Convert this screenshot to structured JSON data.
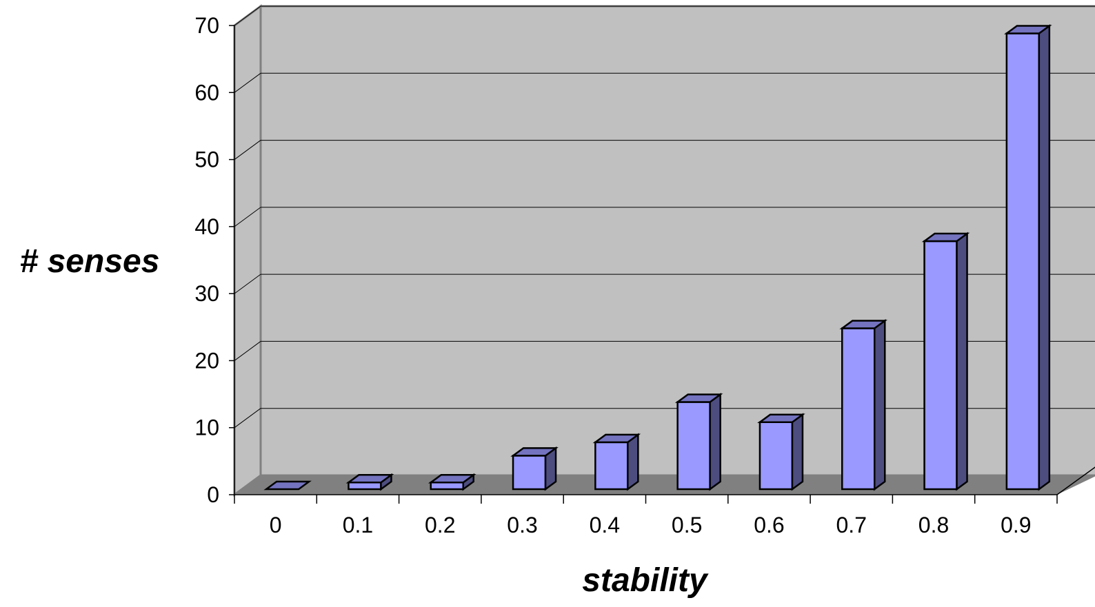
{
  "chart_data": {
    "type": "bar",
    "title": "",
    "xlabel": "stability",
    "ylabel": "# senses",
    "categories": [
      "0",
      "0.1",
      "0.2",
      "0.3",
      "0.4",
      "0.5",
      "0.6",
      "0.7",
      "0.8",
      "0.9"
    ],
    "values": [
      0,
      1,
      1,
      5,
      7,
      13,
      10,
      24,
      37,
      68
    ],
    "ylim": [
      0,
      70
    ],
    "yticks": [
      "0",
      "10",
      "20",
      "30",
      "40",
      "50",
      "60",
      "70"
    ],
    "grid": true,
    "style": "3d",
    "colors": {
      "bar_front": "#9999ff",
      "bar_side": "#4d4d80",
      "bar_top": "#7373bf",
      "back_wall": "#c0c0c0",
      "side_wall": "#c0c0c0",
      "floor": "#808080",
      "gridline": "#000000"
    }
  }
}
